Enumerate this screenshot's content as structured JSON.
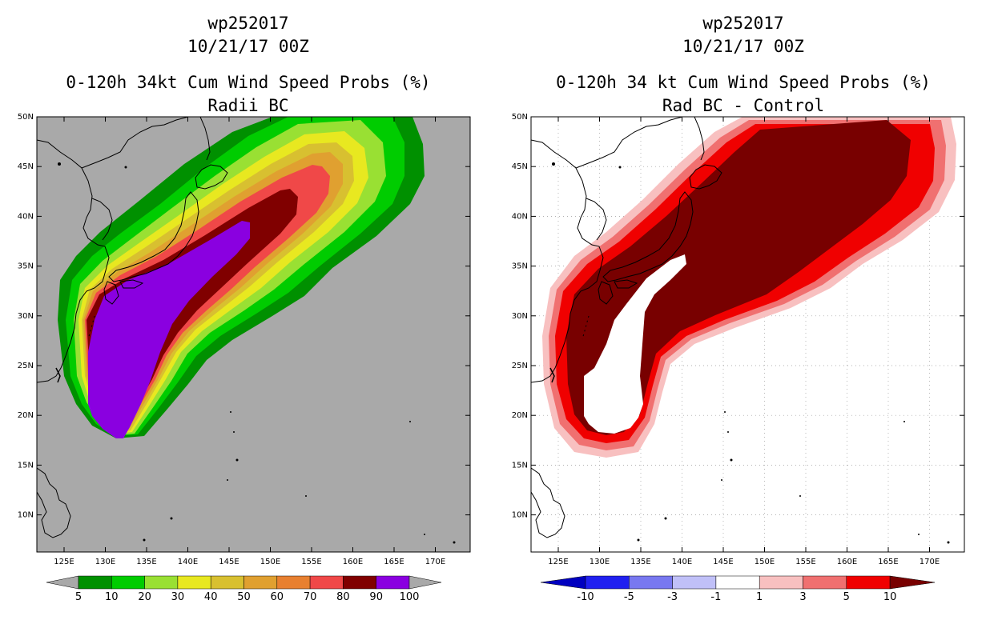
{
  "left_panel": {
    "storm_id": "wp252017",
    "datetime": "10/21/17 00Z",
    "title": "0-120h 34kt Cum Wind Speed Probs (%)",
    "subtitle": "Radii BC",
    "background_color": "#a9a9a9",
    "colorbar_labels": [
      "5",
      "10",
      "20",
      "30",
      "40",
      "50",
      "60",
      "70",
      "80",
      "90",
      "100"
    ],
    "colorbar_colors": [
      "#009000",
      "#00cc00",
      "#99e033",
      "#e8e820",
      "#d8c030",
      "#e0a030",
      "#e88030",
      "#f04848",
      "#800000",
      "#8a00e0"
    ]
  },
  "right_panel": {
    "storm_id": "wp252017",
    "datetime": "10/21/17 00Z",
    "title": "0-120h 34 kt Cum Wind Speed Probs (%)",
    "subtitle": "Rad BC - Control",
    "background_color": "#ffffff",
    "colorbar_labels": [
      "-10",
      "-5",
      "-3",
      "-1",
      "1",
      "3",
      "5",
      "10"
    ],
    "colorbar_colors": [
      "#0000c0",
      "#2020f0",
      "#7878f0",
      "#c0c0f8",
      "#ffffff",
      "#f8c0c0",
      "#f07070",
      "#f00000",
      "#780000"
    ]
  },
  "map": {
    "lat_labels": [
      "50N",
      "45N",
      "40N",
      "35N",
      "30N",
      "25N",
      "20N",
      "15N",
      "10N"
    ],
    "lon_labels": [
      "125E",
      "130E",
      "135E",
      "140E",
      "145E",
      "150E",
      "155E",
      "160E",
      "165E",
      "170E"
    ]
  }
}
